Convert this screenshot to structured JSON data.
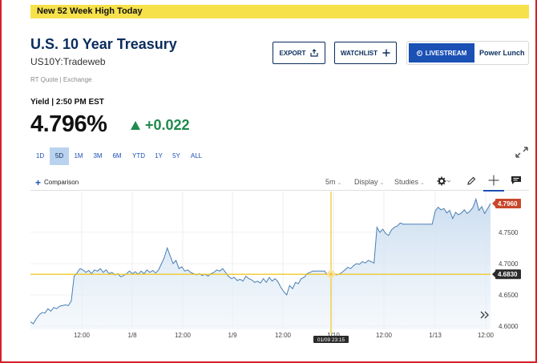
{
  "banner": {
    "text": "New 52 Week High Today"
  },
  "quote": {
    "title": "U.S. 10 Year Treasury",
    "symbol": "US10Y:Tradeweb",
    "source": "RT Quote | Exchange",
    "yield_label": "Yield | 2:50 PM EST",
    "price": "4.796%",
    "change": "+0.022",
    "change_color": "#1f8a4c"
  },
  "actions": {
    "export_label": "EXPORT",
    "watchlist_label": "WATCHLIST",
    "livestream_label": "LIVESTREAM",
    "show_label": "Power Lunch"
  },
  "ranges": [
    {
      "label": "1D",
      "active": false
    },
    {
      "label": "5D",
      "active": true
    },
    {
      "label": "1M",
      "active": false
    },
    {
      "label": "3M",
      "active": false
    },
    {
      "label": "6M",
      "active": false
    },
    {
      "label": "YTD",
      "active": false
    },
    {
      "label": "1Y",
      "active": false
    },
    {
      "label": "5Y",
      "active": false
    },
    {
      "label": "ALL",
      "active": false
    }
  ],
  "toolbar": {
    "comparison_label": "Comparison",
    "interval_label": "5m",
    "display_label": "Display",
    "studies_label": "Studies",
    "icons": [
      "gear-icon",
      "pencil-icon",
      "crosshair-icon",
      "comment-icon"
    ]
  },
  "chart_data": {
    "type": "area",
    "x_tick_labels": [
      "12:00",
      "1/8",
      "12:00",
      "1/9",
      "12:00",
      "1/10",
      "12:00",
      "1/13",
      "12:00"
    ],
    "y_tick_labels": [
      "4.7960",
      "4.7500",
      "4.7000",
      "4.6830",
      "4.6500",
      "4.6000"
    ],
    "ylim": [
      4.595,
      4.81
    ],
    "last_value_label": "4.7960",
    "crosshair_value_label": "4.6830",
    "crosshair_time_label": "01/09 23:15",
    "crosshair_value": 4.683,
    "last_value": 4.796,
    "line_color": "#4a7fb5",
    "fill_color": "#c9dcef",
    "crosshair_color": "#f0c419",
    "last_badge_color": "#c8472b",
    "series": [
      {
        "values": [
          4.607,
          4.604,
          4.612,
          4.618,
          4.622,
          4.621,
          4.628,
          4.624,
          4.63,
          4.628,
          4.632,
          4.633,
          4.634,
          4.633,
          4.64,
          4.68,
          4.685,
          4.692,
          4.69,
          4.686,
          4.689,
          4.684,
          4.69,
          4.688,
          4.692,
          4.686,
          4.69,
          4.684,
          4.686,
          4.682,
          4.684,
          4.679,
          4.681,
          4.684,
          4.688,
          4.684,
          4.687,
          4.683,
          4.688,
          4.684,
          4.69,
          4.686,
          4.689,
          4.685,
          4.69,
          4.7,
          4.71,
          4.725,
          4.712,
          4.7,
          4.705,
          4.692,
          4.695,
          4.688,
          4.69,
          4.686,
          4.684,
          4.682,
          4.684,
          4.681,
          4.683,
          4.68,
          4.684,
          4.686,
          4.69,
          4.688,
          4.692,
          4.686,
          4.68,
          4.676,
          4.678,
          4.673,
          4.675,
          4.672,
          4.68,
          4.676,
          4.674,
          4.67,
          4.672,
          4.669,
          4.676,
          4.67,
          4.678,
          4.672,
          4.676,
          4.671,
          4.662,
          4.655,
          4.65,
          4.665,
          4.66,
          4.67,
          4.668,
          4.676,
          4.678,
          4.684,
          4.686,
          4.688,
          4.688,
          4.688,
          4.688,
          4.688,
          4.682,
          4.684,
          4.686,
          4.682,
          4.683,
          4.686,
          4.69,
          4.694,
          4.692,
          4.697,
          4.7,
          4.699,
          4.703,
          4.701,
          4.705,
          4.703,
          4.701,
          4.758,
          4.75,
          4.755,
          4.748,
          4.745,
          4.754,
          4.758,
          4.76,
          4.765,
          4.763,
          4.763,
          4.763,
          4.763,
          4.763,
          4.763,
          4.763,
          4.763,
          4.763,
          4.763,
          4.763,
          4.784,
          4.79,
          4.786,
          4.788,
          4.781,
          4.785,
          4.772,
          4.782,
          4.778,
          4.781,
          4.786,
          4.78,
          4.784,
          4.79,
          4.803,
          4.785,
          4.791,
          4.78,
          4.788,
          4.796
        ]
      }
    ]
  }
}
